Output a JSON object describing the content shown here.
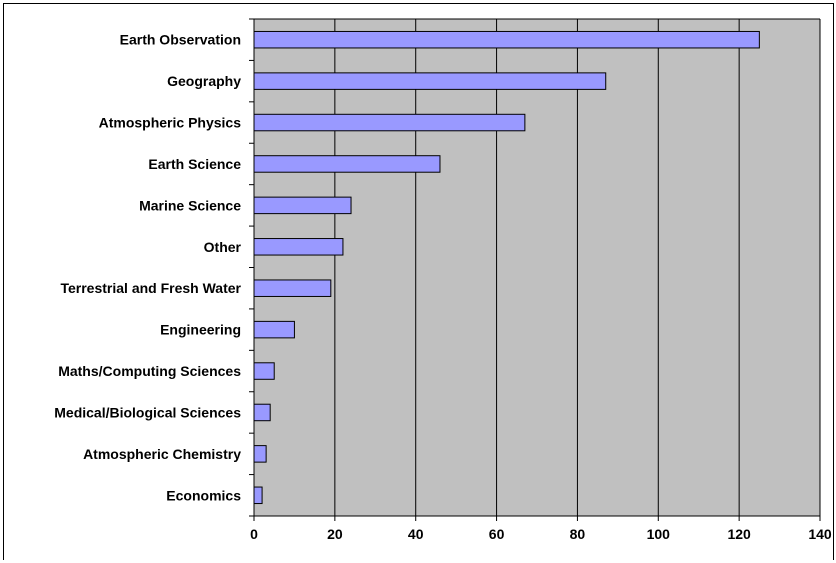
{
  "chart_data": {
    "type": "bar",
    "orientation": "horizontal",
    "categories": [
      "Earth Observation",
      "Geography",
      "Atmospheric Physics",
      "Earth Science",
      "Marine Science",
      "Other",
      "Terrestrial and Fresh Water",
      "Engineering",
      "Maths/Computing Sciences",
      "Medical/Biological Sciences",
      "Atmospheric Chemistry",
      "Economics"
    ],
    "values": [
      125,
      87,
      67,
      46,
      24,
      22,
      19,
      10,
      5,
      4,
      3,
      2
    ],
    "xlim": [
      0,
      140
    ],
    "xticks": [
      "0",
      "20",
      "40",
      "60",
      "80",
      "100",
      "120",
      "140"
    ],
    "title": "",
    "xlabel": "",
    "ylabel": "",
    "grid": "vertical",
    "legend": "none",
    "colors": {
      "plot_background": "#c0c0c0",
      "bar_fill": "#9999ff",
      "bar_stroke": "#000000",
      "gridline": "#000000"
    }
  }
}
